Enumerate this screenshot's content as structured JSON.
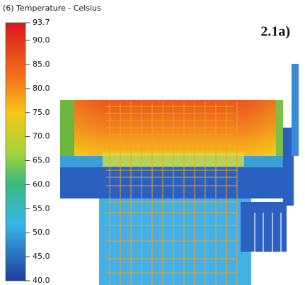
{
  "legend": {
    "title": "(6) Temperature - Celsius",
    "ticks": [
      93.7,
      {
        "value": 90,
        "label": "90.0"
      },
      {
        "value": 85,
        "label": "85.0"
      },
      {
        "value": 80,
        "label": "80.0"
      },
      {
        "value": 75,
        "label": "75.0"
      },
      {
        "value": 70,
        "label": "70.0"
      },
      {
        "value": 65,
        "label": "65.0"
      },
      {
        "value": 60,
        "label": "60.0"
      },
      {
        "value": 55,
        "label": "55.0"
      },
      {
        "value": 50,
        "label": "50.0"
      },
      {
        "value": 45,
        "label": "45.0"
      },
      {
        "value": 40,
        "label": "40.0"
      }
    ]
  },
  "panel_label": "2.1a)"
}
